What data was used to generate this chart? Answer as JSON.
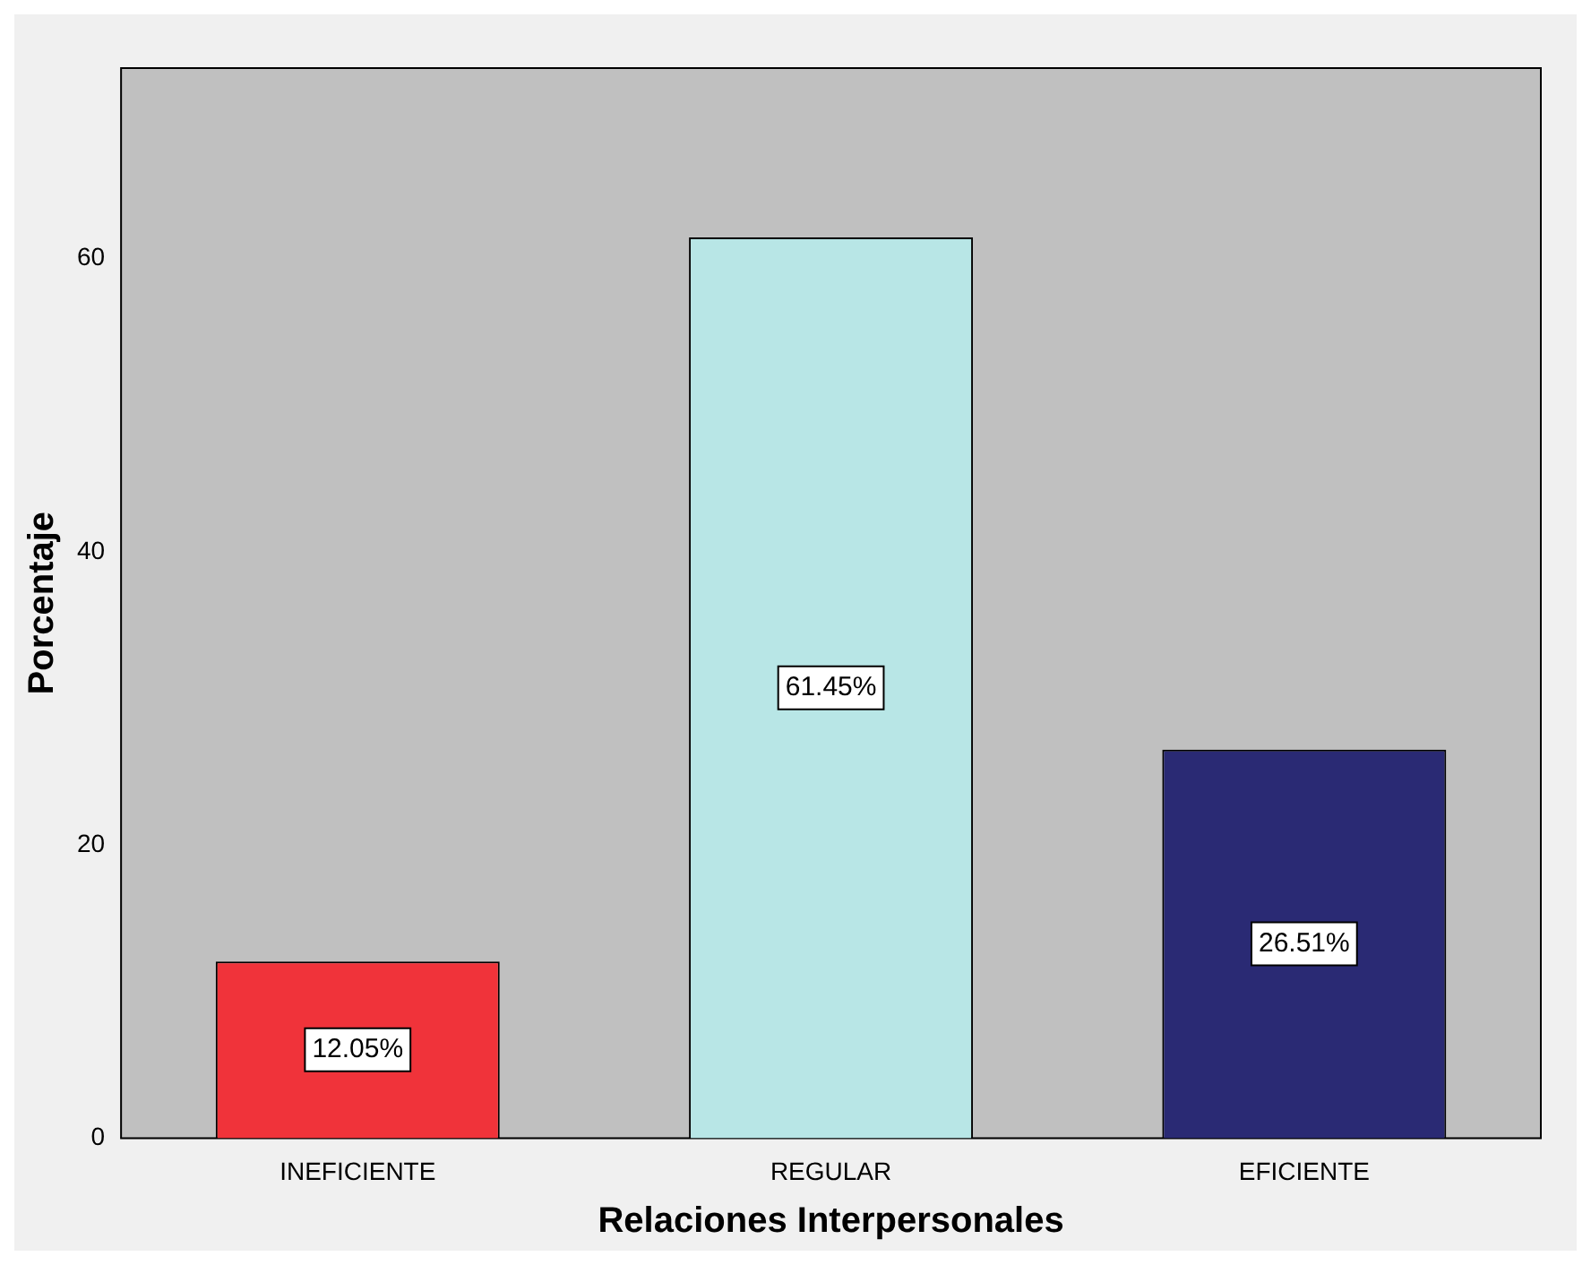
{
  "chart_data": {
    "type": "bar",
    "xlabel": "Relaciones Interpersonales",
    "ylabel": "Porcentaje",
    "categories": [
      "INEFICIENTE",
      "REGULAR",
      "EFICIENTE"
    ],
    "values": [
      12.05,
      61.45,
      26.51
    ],
    "colors": [
      "#f0333a",
      "#b8e6e6",
      "#2a2a74"
    ],
    "value_labels": [
      "12.05%",
      "61.45%",
      "26.51%"
    ],
    "ylim": [
      0,
      73
    ],
    "yticks": [
      0,
      20,
      40,
      60
    ],
    "grid": false,
    "legend": false
  }
}
